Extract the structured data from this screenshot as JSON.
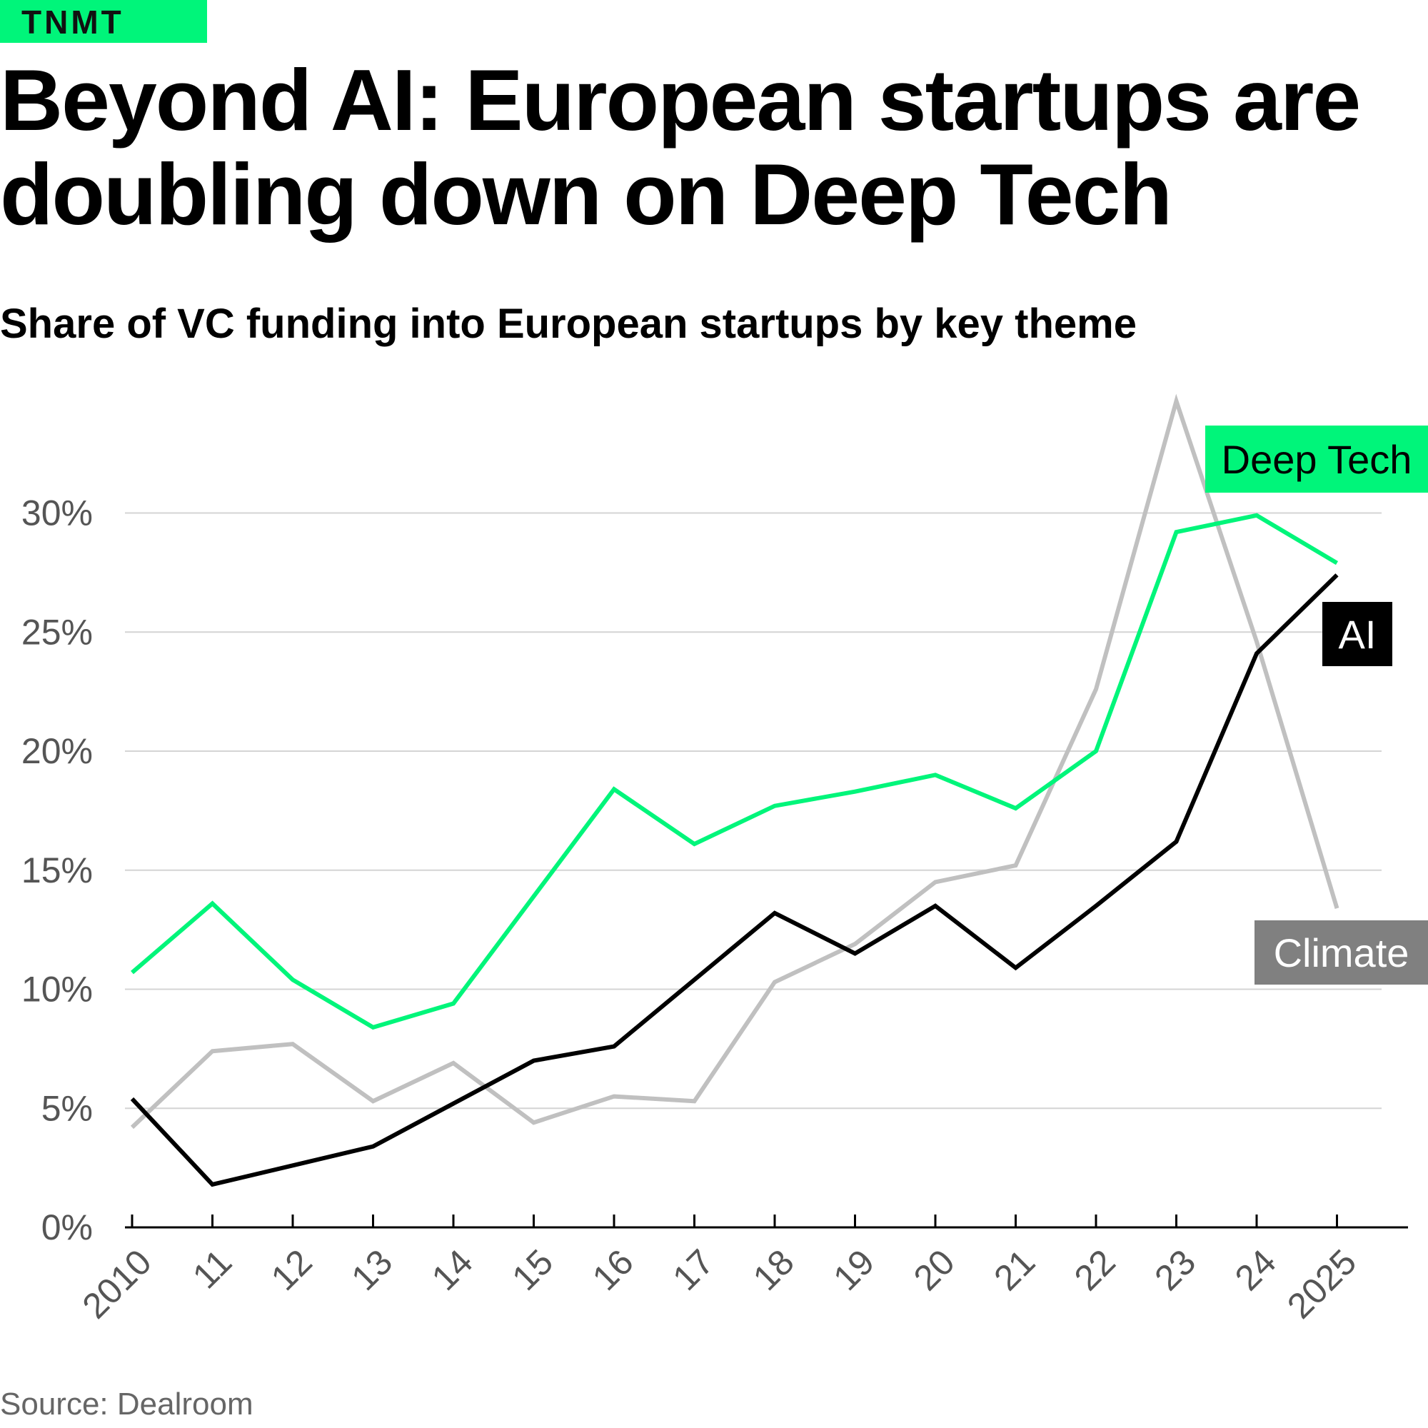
{
  "brand": {
    "logo_text": "TNMT",
    "accent": "#00f57a"
  },
  "title": "Beyond AI: European startups are doubling down on Deep Tech",
  "subtitle": "Share of VC funding into European startups by key theme",
  "source": "Source: Dealroom",
  "chart_data": {
    "type": "line",
    "title": "Share of VC funding into European startups by key theme",
    "x": [
      2010,
      2011,
      2012,
      2013,
      2014,
      2015,
      2016,
      2017,
      2018,
      2019,
      2020,
      2021,
      2022,
      2023,
      2024,
      2025
    ],
    "x_tick_labels": [
      "2010",
      "11",
      "12",
      "13",
      "14",
      "15",
      "16",
      "17",
      "18",
      "19",
      "20",
      "21",
      "22",
      "23",
      "24",
      "2025"
    ],
    "y_ticks": [
      0,
      5,
      10,
      15,
      20,
      25,
      30
    ],
    "y_tick_labels": [
      "0%",
      "5%",
      "10%",
      "15%",
      "20%",
      "25%",
      "30%"
    ],
    "ylim": [
      0,
      35
    ],
    "grid": "horizontal",
    "series": [
      {
        "name": "Deep Tech",
        "color": "#00f57a",
        "values": [
          10.7,
          13.6,
          10.4,
          8.4,
          9.4,
          13.9,
          18.4,
          16.1,
          17.7,
          18.3,
          19.0,
          17.6,
          20.0,
          29.2,
          29.9,
          27.9
        ]
      },
      {
        "name": "AI",
        "color": "#000000",
        "values": [
          5.4,
          1.8,
          2.6,
          3.4,
          5.2,
          7.0,
          7.6,
          10.4,
          13.2,
          11.5,
          13.5,
          10.9,
          13.5,
          16.2,
          24.1,
          27.4
        ]
      },
      {
        "name": "Climate",
        "color": "#c0c0c0",
        "values": [
          4.2,
          7.4,
          7.7,
          5.3,
          6.9,
          4.4,
          5.5,
          5.3,
          10.3,
          11.9,
          14.5,
          15.2,
          22.6,
          34.7,
          24.6,
          13.4
        ]
      }
    ],
    "labels": [
      {
        "series": "Deep Tech",
        "text": "Deep Tech",
        "bg": "#00f57a",
        "fg": "#000000"
      },
      {
        "series": "AI",
        "text": "AI",
        "bg": "#000000",
        "fg": "#ffffff"
      },
      {
        "series": "Climate",
        "text": "Climate",
        "bg": "#808080",
        "fg": "#ffffff"
      }
    ]
  }
}
